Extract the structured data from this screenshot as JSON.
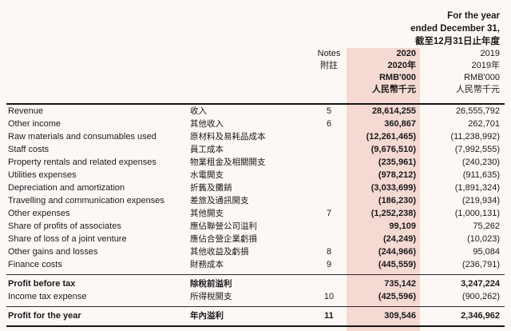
{
  "period_header": {
    "line1": "For the year",
    "line2": "ended December 31,",
    "line3": "截至12月31日止年度"
  },
  "columns": {
    "notes": {
      "en": "Notes",
      "zh": "附註"
    },
    "y2020": {
      "year": "2020",
      "year_zh": "2020年",
      "unit": "RMB'000",
      "unit_zh": "人民幣千元"
    },
    "y2019": {
      "year": "2019",
      "year_zh": "2019年",
      "unit": "RMB'000",
      "unit_zh": "人民幣千元"
    }
  },
  "colors": {
    "highlight": "#f5d9d3",
    "page_bg": "#fdf8f6",
    "rule": "#151515"
  },
  "rows": [
    {
      "en": "Revenue",
      "zh": "收入",
      "note": "5",
      "v2020": "28,614,255",
      "v2019": "26,555,792"
    },
    {
      "en": "Other income",
      "zh": "其他收入",
      "note": "6",
      "v2020": "360,867",
      "v2019": "262,701"
    },
    {
      "en": "Raw materials and consumables used",
      "zh": "原材料及易耗品成本",
      "note": "",
      "v2020": "(12,261,465)",
      "v2019": "(11,238,992)"
    },
    {
      "en": "Staff costs",
      "zh": "員工成本",
      "note": "",
      "v2020": "(9,676,510)",
      "v2019": "(7,992,555)"
    },
    {
      "en": "Property rentals and related expenses",
      "zh": "物業租金及相關開支",
      "note": "",
      "v2020": "(235,961)",
      "v2019": "(240,230)"
    },
    {
      "en": "Utilities expenses",
      "zh": "水電開支",
      "note": "",
      "v2020": "(978,212)",
      "v2019": "(911,635)"
    },
    {
      "en": "Depreciation and amortization",
      "zh": "折舊及攤銷",
      "note": "",
      "v2020": "(3,033,699)",
      "v2019": "(1,891,324)"
    },
    {
      "en": "Travelling and communication expenses",
      "zh": "差旅及通訊開支",
      "note": "",
      "v2020": "(186,230)",
      "v2019": "(219,934)"
    },
    {
      "en": "Other expenses",
      "zh": "其他開支",
      "note": "7",
      "v2020": "(1,252,238)",
      "v2019": "(1,000,131)"
    },
    {
      "en": "Share of profits of associates",
      "zh": "應佔聯營公司溢利",
      "note": "",
      "v2020": "99,109",
      "v2019": "75,262"
    },
    {
      "en": "Share of loss of a joint venture",
      "zh": "應佔合營企業虧損",
      "note": "",
      "v2020": "(24,249)",
      "v2019": "(10,023)"
    },
    {
      "en": "Other gains and losses",
      "zh": "其他收益及虧損",
      "note": "8",
      "v2020": "(244,966)",
      "v2019": "95,084"
    },
    {
      "en": "Finance costs",
      "zh": "財務成本",
      "note": "9",
      "v2020": "(445,559)",
      "v2019": "(236,791)"
    },
    {
      "en": "Profit before tax",
      "zh": "除稅前溢利",
      "note": "",
      "v2020": "735,142",
      "v2019": "3,247,224"
    },
    {
      "en": "Income tax expense",
      "zh": "所得稅開支",
      "note": "10",
      "v2020": "(425,596)",
      "v2019": "(900,262)"
    },
    {
      "en": "Profit for the year",
      "zh": "年內溢利",
      "note": "11",
      "v2020": "309,546",
      "v2019": "2,346,962"
    }
  ]
}
